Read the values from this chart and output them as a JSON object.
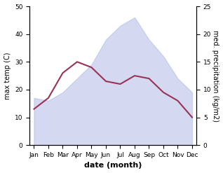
{
  "months": [
    "Jan",
    "Feb",
    "Mar",
    "Apr",
    "May",
    "Jun",
    "Jul",
    "Aug",
    "Sep",
    "Oct",
    "Nov",
    "Dec"
  ],
  "max_temp": [
    17,
    16,
    19,
    24,
    29,
    38,
    43,
    46,
    38,
    32,
    24,
    19
  ],
  "precip_values": [
    6.5,
    8.5,
    13,
    15,
    14,
    11.5,
    11,
    12.5,
    12,
    9.5,
    8,
    5
  ],
  "temp_fill_color": "#b8c0e8",
  "temp_fill_alpha": 0.6,
  "precip_line_color": "#993355",
  "ylim_left": [
    0,
    50
  ],
  "ylim_right": [
    0,
    25
  ],
  "yticks_left": [
    0,
    10,
    20,
    30,
    40,
    50
  ],
  "yticks_right": [
    0,
    5,
    10,
    15,
    20,
    25
  ],
  "xlabel": "date (month)",
  "ylabel_left": "max temp (C)",
  "ylabel_right": "med. precipitation (kg/m2)",
  "background_color": "#ffffff",
  "tick_fontsize": 6.5,
  "label_fontsize": 7,
  "xlabel_fontsize": 8,
  "line_width": 1.5
}
